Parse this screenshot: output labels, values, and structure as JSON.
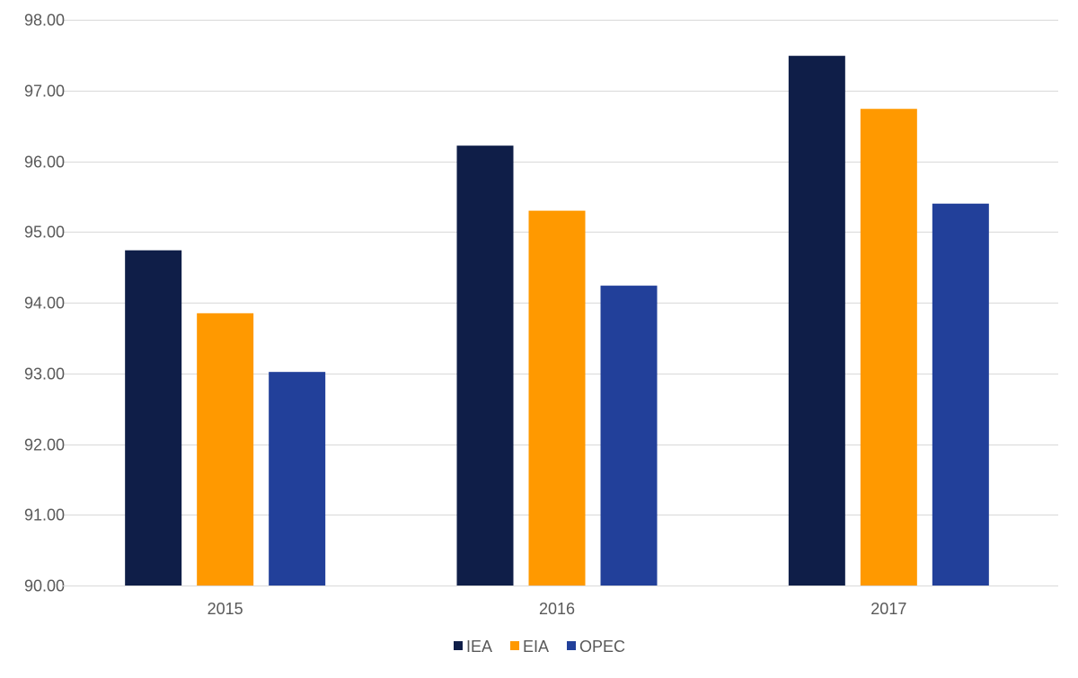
{
  "chart_data": {
    "type": "bar",
    "title": "",
    "xlabel": "",
    "ylabel": "",
    "categories": [
      "2015",
      "2016",
      "2017"
    ],
    "ylim": [
      90,
      98
    ],
    "yticks": [
      "90.00",
      "91.00",
      "92.00",
      "93.00",
      "94.00",
      "95.00",
      "96.00",
      "97.00",
      "98.00"
    ],
    "grid": true,
    "legend_position": "bottom",
    "series": [
      {
        "name": "IEA",
        "color": "#0f1e48",
        "values": [
          94.74,
          96.22,
          97.49
        ]
      },
      {
        "name": "EIA",
        "color": "#ff9900",
        "values": [
          93.85,
          95.3,
          96.74
        ]
      },
      {
        "name": "OPEC",
        "color": "#22409a",
        "values": [
          93.02,
          94.24,
          95.4
        ]
      }
    ]
  }
}
